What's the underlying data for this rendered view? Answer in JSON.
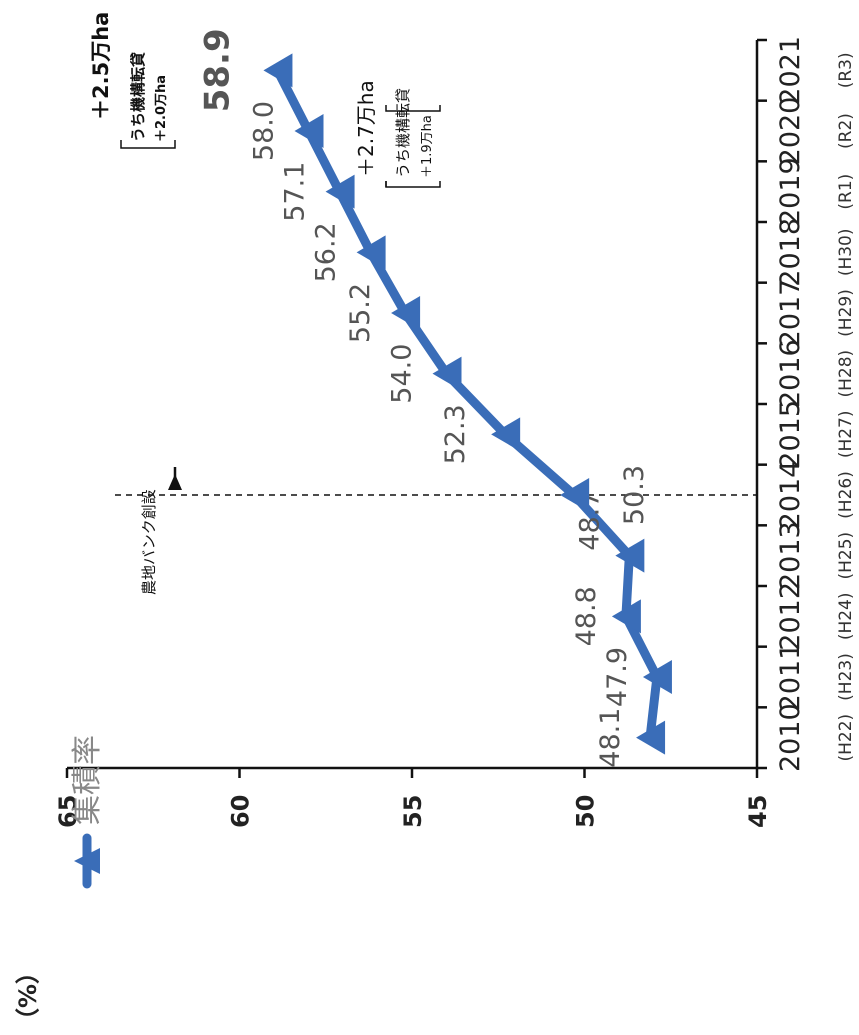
{
  "chart_data": {
    "type": "line",
    "ylabel": "（%）",
    "ylim": [
      45,
      65
    ],
    "yticks": [
      "45",
      "50",
      "55",
      "60",
      "65"
    ],
    "categories": [
      "2010",
      "2011",
      "2012",
      "2013",
      "2014",
      "2015",
      "2016",
      "2017",
      "2018",
      "2019",
      "2020",
      "2021"
    ],
    "era_labels": [
      "(H22)",
      "(H23)",
      "(H24)",
      "(H25)",
      "(H26)",
      "(H27)",
      "(H28)",
      "(H29)",
      "(H30)",
      "(R1)",
      "(R2)",
      "(R3)"
    ],
    "series": [
      {
        "name": "集積率",
        "values": [
          48.1,
          47.9,
          48.8,
          48.7,
          50.3,
          52.3,
          54.0,
          55.2,
          56.2,
          57.1,
          58.0,
          58.9
        ],
        "labels": [
          "48.1",
          "47.9",
          "48.8",
          "48.7",
          "50.3",
          "52.3",
          "54.0",
          "55.2",
          "56.2",
          "57.1",
          "58.0",
          "58.9"
        ]
      }
    ],
    "legend_position": "bottom-left",
    "colors": {
      "series": "#3a6db8",
      "axis": "#111111"
    },
    "annotations": {
      "bank_marker": {
        "category": "2014",
        "label": "農地バンク創設"
      },
      "increase_2020": {
        "main": "＋2.7万ha",
        "sub_prefix": "うち機構転貸",
        "sub_value": "＋1.9万ha"
      },
      "increase_2021": {
        "main": "＋2.5万ha",
        "sub_prefix": "うち機構転貸",
        "sub_value": "＋2.0万ha"
      }
    }
  }
}
